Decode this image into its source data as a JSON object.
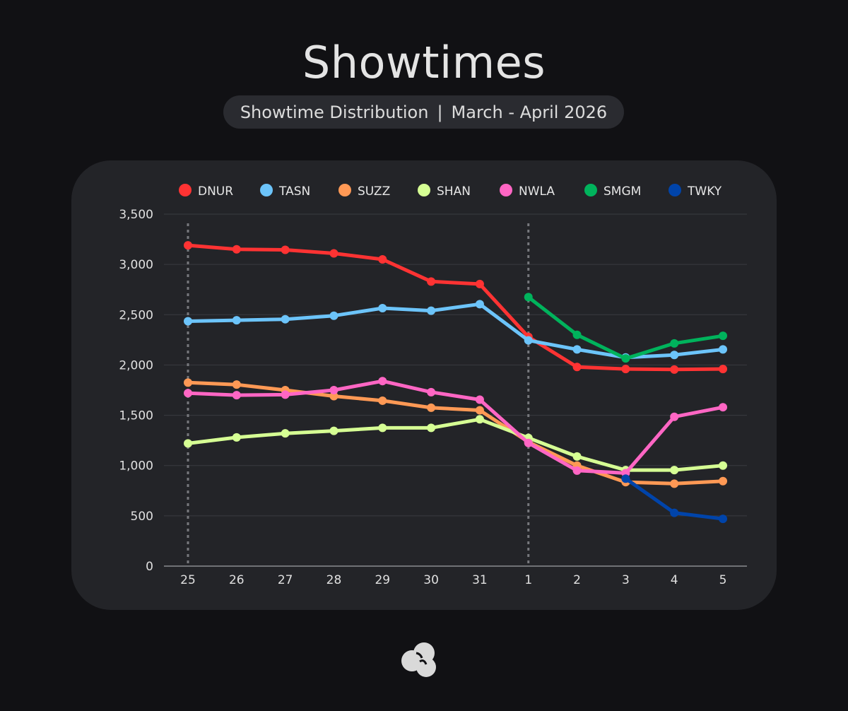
{
  "header": {
    "title": "Showtimes",
    "subtitle_left": "Showtime Distribution",
    "subtitle_sep": "|",
    "subtitle_right": "March - April 2026"
  },
  "footer": {
    "logo_icon": "cloud-logo-icon"
  },
  "chart_data": {
    "type": "line",
    "title": "Showtimes",
    "subtitle": "Showtime Distribution | March - April 2026",
    "xlabel": "",
    "ylabel": "",
    "categories": [
      "25",
      "26",
      "27",
      "28",
      "29",
      "30",
      "31",
      "1",
      "2",
      "3",
      "4",
      "5"
    ],
    "ylim": [
      0,
      3500
    ],
    "yticks": [
      0,
      500,
      1000,
      1500,
      2000,
      2500,
      3000,
      3500
    ],
    "ytick_labels": [
      "0",
      "500",
      "1,000",
      "1,500",
      "2,000",
      "2,500",
      "3,000",
      "3,500"
    ],
    "grid": true,
    "legend_position": "top",
    "marked_categories": [
      "25",
      "1"
    ],
    "series": [
      {
        "name": "DNUR",
        "color": "#ff3333",
        "values": [
          3190,
          3150,
          3145,
          3110,
          3050,
          2830,
          2805,
          2280,
          1980,
          1960,
          1955,
          1960
        ]
      },
      {
        "name": "TASN",
        "color": "#6cc4fa",
        "values": [
          2435,
          2445,
          2455,
          2490,
          2565,
          2540,
          2605,
          2245,
          2155,
          2075,
          2100,
          2155
        ]
      },
      {
        "name": "SUZZ",
        "color": "#ff9955",
        "values": [
          1825,
          1805,
          1750,
          1690,
          1645,
          1575,
          1550,
          1235,
          1000,
          835,
          820,
          845
        ]
      },
      {
        "name": "SHAN",
        "color": "#d6ff94",
        "values": [
          1220,
          1280,
          1320,
          1345,
          1375,
          1375,
          1460,
          1275,
          1090,
          955,
          955,
          1000
        ]
      },
      {
        "name": "NWLA",
        "color": "#ff66c4",
        "values": [
          1720,
          1700,
          1705,
          1750,
          1840,
          1730,
          1655,
          1225,
          950,
          925,
          1485,
          1580
        ]
      },
      {
        "name": "SMGM",
        "color": "#00b35c",
        "values": [
          null,
          null,
          null,
          null,
          null,
          null,
          null,
          2675,
          2300,
          2065,
          2215,
          2290
        ]
      },
      {
        "name": "TWKY",
        "color": "#0044aa",
        "values": [
          null,
          null,
          null,
          null,
          null,
          null,
          null,
          null,
          null,
          870,
          530,
          470
        ]
      }
    ]
  }
}
